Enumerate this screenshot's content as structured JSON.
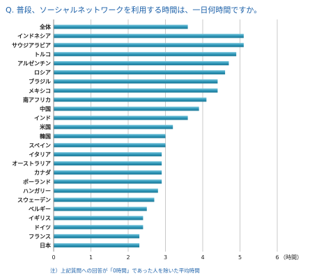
{
  "chart_data": {
    "type": "bar",
    "orientation": "horizontal",
    "title": "Q. 普段、ソーシャルネットワークを利用する時間は、一日何時間ですか。",
    "categories": [
      "全体",
      "インドネシア",
      "サウジアラビア",
      "トルコ",
      "アルゼンチン",
      "ロシア",
      "ブラジル",
      "メキシコ",
      "南アフリカ",
      "中国",
      "インド",
      "米国",
      "韓国",
      "スペイン",
      "イタリア",
      "オーストラリア",
      "カナダ",
      "ポーランド",
      "ハンガリー",
      "スウェーデン",
      "ベルギー",
      "イギリス",
      "ドイツ",
      "フランス",
      "日本"
    ],
    "values": [
      3.6,
      5.1,
      5.1,
      4.9,
      4.7,
      4.6,
      4.4,
      4.4,
      4.1,
      3.9,
      3.6,
      3.2,
      3.0,
      3.0,
      2.9,
      2.9,
      2.9,
      2.9,
      2.8,
      2.7,
      2.5,
      2.4,
      2.4,
      2.3,
      2.3
    ],
    "xlim": [
      0,
      6
    ],
    "xticks": [
      "0",
      "1",
      "2",
      "3",
      "4",
      "5",
      "6"
    ],
    "xunit": "（時間）",
    "note": "注）上記質問への回答が「0時間」であった人を除いた平均時間",
    "grid": true,
    "bar_color": "#3aa0c0"
  }
}
